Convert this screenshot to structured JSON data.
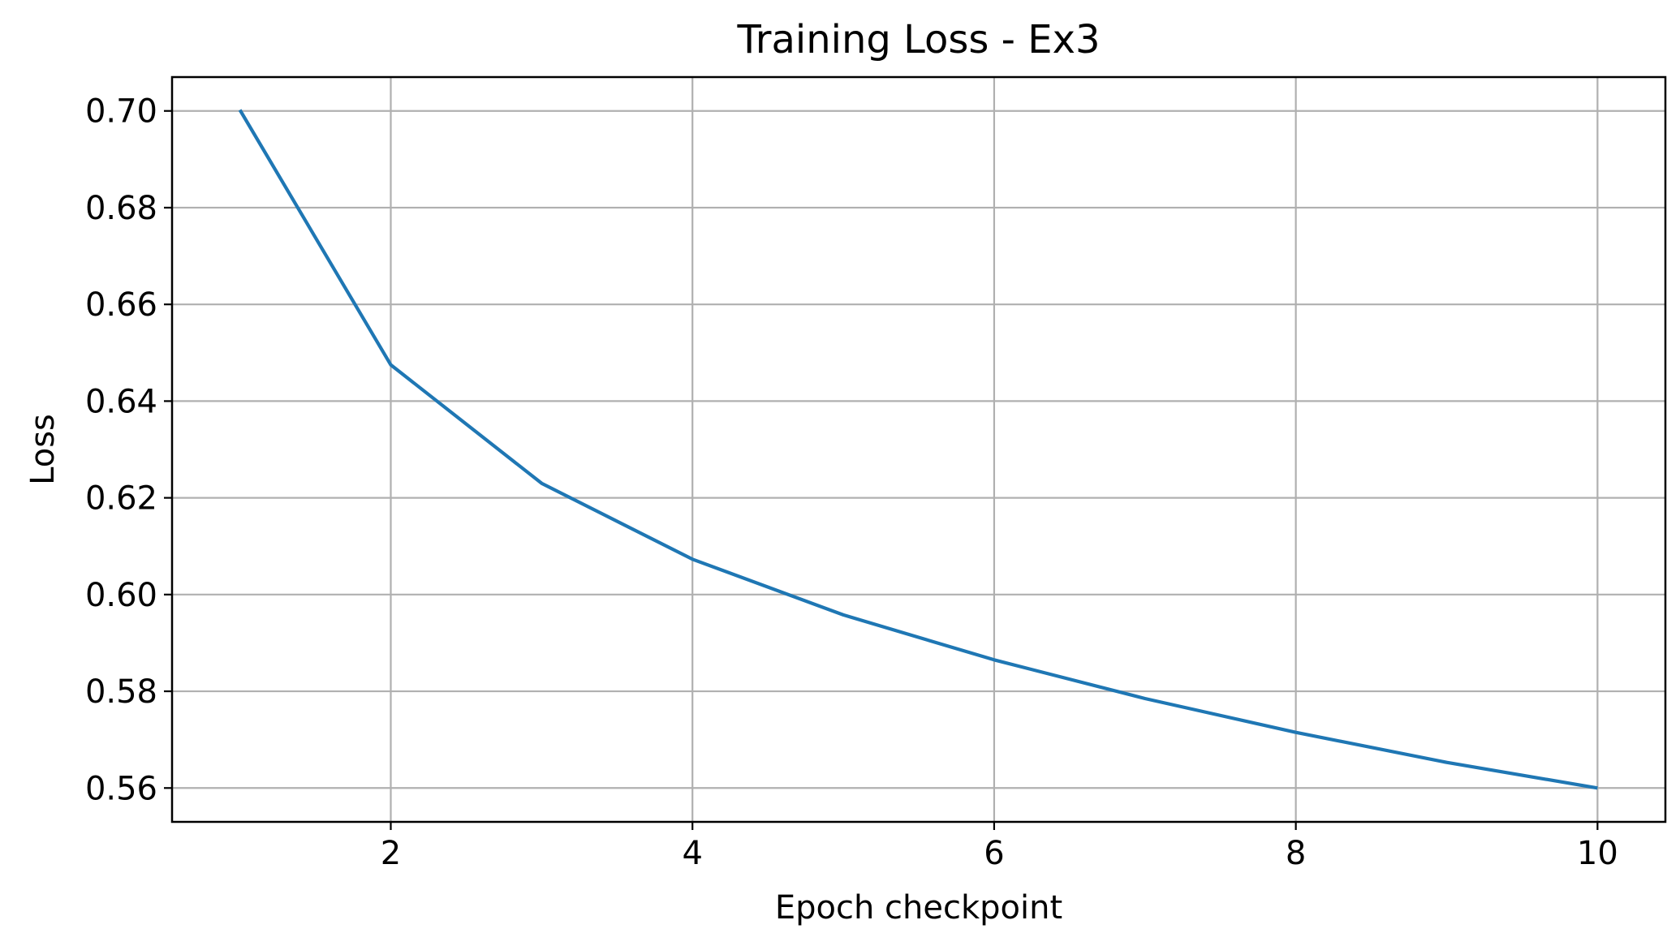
{
  "chart_data": {
    "type": "line",
    "title": "Training Loss - Ex3",
    "xlabel": "Epoch checkpoint",
    "ylabel": "Loss",
    "x": [
      1,
      2,
      3,
      4,
      5,
      6,
      7,
      8,
      9,
      10
    ],
    "series": [
      {
        "values": [
          0.7002,
          0.6475,
          0.623,
          0.6073,
          0.5958,
          0.5865,
          0.5785,
          0.5715,
          0.5653,
          0.56
        ],
        "color": "#1f77b4"
      }
    ],
    "xlim": [
      0.55,
      10.45
    ],
    "ylim": [
      0.553,
      0.707
    ],
    "xticks": [
      2,
      4,
      6,
      8,
      10
    ],
    "xtick_labels": [
      "2",
      "4",
      "6",
      "8",
      "10"
    ],
    "yticks": [
      0.56,
      0.58,
      0.6,
      0.62,
      0.64,
      0.66,
      0.68,
      0.7
    ],
    "ytick_labels": [
      "0.56",
      "0.58",
      "0.60",
      "0.62",
      "0.64",
      "0.66",
      "0.68",
      "0.70"
    ],
    "grid": true,
    "grid_color": "#b0b0b0",
    "legend": false
  }
}
